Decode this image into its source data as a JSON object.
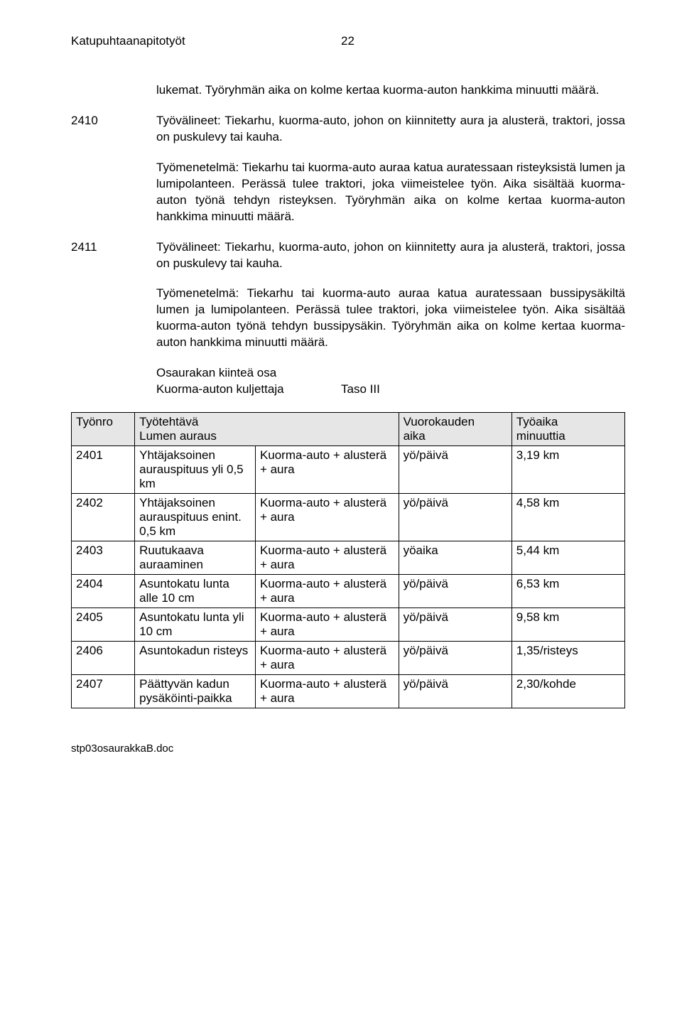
{
  "header": {
    "doc_title": "Katupuhtaanapitotyöt",
    "page_number": "22"
  },
  "body": {
    "intro": "lukemat. Työryhmän aika on kolme kertaa kuorma-auton hankkima minuutti määrä.",
    "s2410_num": "2410",
    "s2410_p1": "Työvälineet: Tiekarhu, kuorma-auto, johon on kiinnitetty aura ja alusterä, traktori, jossa on puskulevy tai kauha.",
    "s2410_p2": "Työmenetelmä: Tiekarhu tai kuorma-auto auraa katua auratessaan risteyksistä lumen ja lumipolanteen. Perässä tulee traktori, joka viimeistelee työn. Aika sisältää kuorma-auton työnä tehdyn risteyksen. Työryhmän aika on kolme kertaa kuorma-auton hankkima minuutti määrä.",
    "s2411_num": "2411",
    "s2411_p1": "Työvälineet: Tiekarhu, kuorma-auto, johon on kiinnitetty aura ja alusterä, traktori, jossa on puskulevy tai kauha.",
    "s2411_p2": "Työmenetelmä: Tiekarhu tai kuorma-auto auraa katua auratessaan bussipysäkiltä lumen ja lumipolanteen. Perässä tulee traktori, joka viimeistelee työn. Aika sisältää kuorma-auton työnä tehdyn bussipysäkin. Työryhmän aika on kolme kertaa kuorma-auton hankkima minuutti määrä.",
    "sub1": "Osaurakan kiinteä osa",
    "sub2a": "Kuorma-auton kuljettaja",
    "sub2b": "Taso III"
  },
  "table": {
    "head": {
      "c0": "Työnro",
      "c1a": "Työtehtävä",
      "c1b": "Lumen auraus",
      "c3a": "Vuorokauden",
      "c3b": "aika",
      "c4a": "Työaika",
      "c4b": "minuuttia"
    },
    "rows": [
      {
        "n": "2401",
        "a": "Yhtäjaksoinen aurauspituus yli 0,5 km",
        "b": "Kuorma-auto + alusterä + aura",
        "c": "yö/päivä",
        "d": "3,19 km"
      },
      {
        "n": "2402",
        "a": "Yhtäjaksoinen aurauspituus enint. 0,5 km",
        "b": "Kuorma-auto + alusterä + aura",
        "c": "yö/päivä",
        "d": "4,58 km"
      },
      {
        "n": "2403",
        "a": "Ruutukaava auraaminen",
        "b": "Kuorma-auto + alusterä + aura",
        "c": "yöaika",
        "d": "5,44 km"
      },
      {
        "n": "2404",
        "a": "Asuntokatu lunta alle 10 cm",
        "b": "Kuorma-auto + alusterä + aura",
        "c": "yö/päivä",
        "d": "6,53 km"
      },
      {
        "n": "2405",
        "a": "Asuntokatu lunta yli 10 cm",
        "b": "Kuorma-auto + alusterä + aura",
        "c": "yö/päivä",
        "d": "9,58 km"
      },
      {
        "n": "2406",
        "a": "Asuntokadun risteys",
        "b": "Kuorma-auto + alusterä + aura",
        "c": "yö/päivä",
        "d": "1,35/risteys"
      },
      {
        "n": "2407",
        "a": "Päättyvän kadun pysäköinti-paikka",
        "b": "Kuorma-auto + alusterä + aura",
        "c": "yö/päivä",
        "d": "2,30/kohde"
      }
    ]
  },
  "footer": "stp03osaurakkaB.doc"
}
